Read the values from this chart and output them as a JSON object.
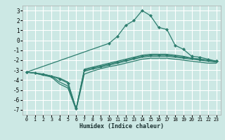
{
  "xlabel": "Humidex (Indice chaleur)",
  "bg_color": "#cce8e4",
  "grid_color": "#ffffff",
  "line_color": "#2d7d6e",
  "xlim": [
    -0.5,
    23.5
  ],
  "ylim": [
    -7.5,
    3.5
  ],
  "xticks": [
    0,
    1,
    2,
    3,
    4,
    5,
    6,
    7,
    8,
    9,
    10,
    11,
    12,
    13,
    14,
    15,
    16,
    17,
    18,
    19,
    20,
    21,
    22,
    23
  ],
  "yticks": [
    -7,
    -6,
    -5,
    -4,
    -3,
    -2,
    -1,
    0,
    1,
    2,
    3
  ],
  "series": [
    {
      "x": [
        0,
        1,
        2,
        3,
        4,
        5,
        6,
        7,
        8,
        9,
        10,
        11,
        12,
        13,
        14,
        15,
        16,
        17,
        18,
        19,
        20,
        21,
        22,
        23
      ],
      "y": [
        -3.2,
        -3.3,
        -3.4,
        -3.6,
        -3.9,
        -4.3,
        -6.9,
        -3.0,
        -2.8,
        -2.6,
        -2.4,
        -2.2,
        -2.0,
        -1.8,
        -1.6,
        -1.5,
        -1.5,
        -1.5,
        -1.6,
        -1.7,
        -1.8,
        -1.9,
        -2.0,
        -2.1
      ],
      "marker": true,
      "lw": 0.9
    },
    {
      "x": [
        0,
        1,
        2,
        3,
        4,
        5,
        6,
        7,
        8,
        9,
        10,
        11,
        12,
        13,
        14,
        15,
        16,
        17,
        18,
        19,
        20,
        21,
        22,
        23
      ],
      "y": [
        -3.2,
        -3.3,
        -3.5,
        -3.6,
        -4.2,
        -4.6,
        -6.9,
        -2.9,
        -2.7,
        -2.5,
        -2.3,
        -2.1,
        -1.9,
        -1.7,
        -1.5,
        -1.4,
        -1.4,
        -1.4,
        -1.5,
        -1.6,
        -1.8,
        -1.9,
        -2.0,
        -2.1
      ],
      "marker": false,
      "lw": 0.9
    },
    {
      "x": [
        0,
        1,
        2,
        3,
        4,
        5,
        6,
        7,
        8,
        9,
        10,
        11,
        12,
        13,
        14,
        15,
        16,
        17,
        18,
        19,
        20,
        21,
        22,
        23
      ],
      "y": [
        -3.2,
        -3.3,
        -3.4,
        -3.6,
        -3.8,
        -4.2,
        -6.9,
        -3.1,
        -2.9,
        -2.7,
        -2.5,
        -2.3,
        -2.1,
        -1.9,
        -1.7,
        -1.6,
        -1.6,
        -1.6,
        -1.7,
        -1.8,
        -1.9,
        -2.0,
        -2.1,
        -2.2
      ],
      "marker": false,
      "lw": 0.9
    },
    {
      "x": [
        0,
        1,
        2,
        3,
        4,
        5,
        6,
        7,
        8,
        9,
        10,
        11,
        12,
        13,
        14,
        15,
        16,
        17,
        18,
        19,
        20,
        21,
        22,
        23
      ],
      "y": [
        -3.2,
        -3.3,
        -3.5,
        -3.7,
        -4.4,
        -4.8,
        -7.0,
        -3.4,
        -3.1,
        -2.85,
        -2.65,
        -2.5,
        -2.3,
        -2.1,
        -1.9,
        -1.8,
        -1.8,
        -1.8,
        -1.9,
        -2.0,
        -2.1,
        -2.2,
        -2.3,
        -2.3
      ],
      "marker": false,
      "lw": 0.9
    },
    {
      "x": [
        0,
        10,
        11,
        12,
        13,
        14,
        15,
        16,
        17,
        18,
        19,
        20,
        21,
        22,
        23
      ],
      "y": [
        -3.2,
        -0.3,
        0.4,
        1.5,
        2.0,
        3.0,
        2.5,
        1.3,
        1.1,
        -0.5,
        -0.9,
        -1.6,
        -1.7,
        -1.9,
        -2.1
      ],
      "marker": true,
      "lw": 0.9
    }
  ]
}
